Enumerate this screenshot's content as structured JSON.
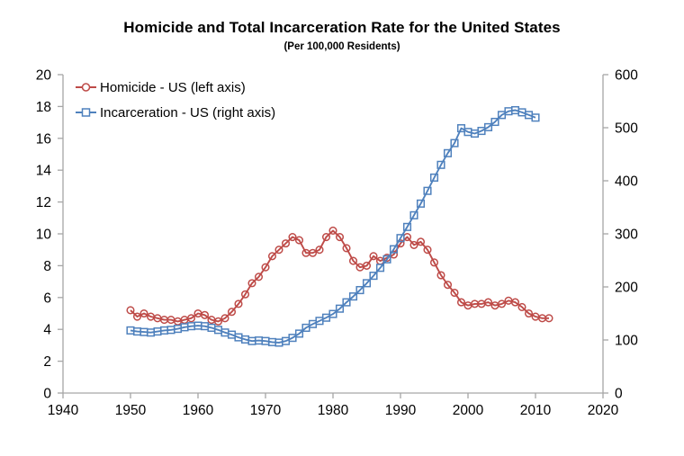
{
  "title": "Homicide and Total Incarceration Rate for the United States",
  "subtitle": "(Per 100,000 Residents)",
  "colors": {
    "homicide": "#BE4B48",
    "incarceration": "#4F81BD",
    "axis": "#A6A6A6",
    "text": "#000000",
    "background": "#FFFFFF"
  },
  "chart_data": {
    "type": "line",
    "title": "Homicide and Total Incarceration Rate for the United States",
    "subtitle": "(Per 100,000 Residents)",
    "grid": false,
    "legend_position": "top-left-inside",
    "x_axis": {
      "min": 1940,
      "max": 2020,
      "tick_step": 10,
      "ticks": [
        1940,
        1950,
        1960,
        1970,
        1980,
        1990,
        2000,
        2010,
        2020
      ]
    },
    "left_axis": {
      "min": 0,
      "max": 20,
      "tick_step": 2,
      "ticks": [
        0,
        2,
        4,
        6,
        8,
        10,
        12,
        14,
        16,
        18,
        20
      ]
    },
    "right_axis": {
      "min": 0,
      "max": 600,
      "tick_step": 100,
      "ticks": [
        0,
        100,
        200,
        300,
        400,
        500,
        600
      ]
    },
    "series": [
      {
        "name": "Homicide - US (left axis)",
        "axis": "left",
        "color": "#BE4B48",
        "marker": "circle",
        "years": [
          1950,
          1951,
          1952,
          1953,
          1954,
          1955,
          1956,
          1957,
          1958,
          1959,
          1960,
          1961,
          1962,
          1963,
          1964,
          1965,
          1966,
          1967,
          1968,
          1969,
          1970,
          1971,
          1972,
          1973,
          1974,
          1975,
          1976,
          1977,
          1978,
          1979,
          1980,
          1981,
          1982,
          1983,
          1984,
          1985,
          1986,
          1987,
          1988,
          1989,
          1990,
          1991,
          1992,
          1993,
          1994,
          1995,
          1996,
          1997,
          1998,
          1999,
          2000,
          2001,
          2002,
          2003,
          2004,
          2005,
          2006,
          2007,
          2008,
          2009,
          2010,
          2011,
          2012
        ],
        "values": [
          5.2,
          4.8,
          5.0,
          4.8,
          4.7,
          4.6,
          4.6,
          4.5,
          4.6,
          4.7,
          5.0,
          4.9,
          4.6,
          4.5,
          4.7,
          5.1,
          5.6,
          6.2,
          6.9,
          7.3,
          7.9,
          8.6,
          9.0,
          9.4,
          9.8,
          9.6,
          8.8,
          8.8,
          9.0,
          9.8,
          10.2,
          9.8,
          9.1,
          8.3,
          7.9,
          8.0,
          8.6,
          8.3,
          8.5,
          8.7,
          9.4,
          9.8,
          9.3,
          9.5,
          9.0,
          8.2,
          7.4,
          6.8,
          6.3,
          5.7,
          5.5,
          5.6,
          5.6,
          5.7,
          5.5,
          5.6,
          5.8,
          5.7,
          5.4,
          5.0,
          4.8,
          4.7,
          4.7
        ]
      },
      {
        "name": "Incarceration - US (right axis)",
        "axis": "right",
        "color": "#4F81BD",
        "marker": "square",
        "years": [
          1950,
          1951,
          1952,
          1953,
          1954,
          1955,
          1956,
          1957,
          1958,
          1959,
          1960,
          1961,
          1962,
          1963,
          1964,
          1965,
          1966,
          1967,
          1968,
          1969,
          1970,
          1971,
          1972,
          1973,
          1974,
          1975,
          1976,
          1977,
          1978,
          1979,
          1980,
          1981,
          1982,
          1983,
          1984,
          1985,
          1986,
          1987,
          1988,
          1989,
          1990,
          1991,
          1992,
          1993,
          1994,
          1995,
          1996,
          1997,
          1998,
          1999,
          2000,
          2001,
          2002,
          2003,
          2004,
          2005,
          2006,
          2007,
          2008,
          2009,
          2010
        ],
        "values": [
          118,
          116,
          115,
          114,
          116,
          118,
          119,
          121,
          124,
          126,
          127,
          126,
          123,
          119,
          114,
          110,
          105,
          101,
          98,
          99,
          98,
          96,
          95,
          98,
          104,
          112,
          123,
          130,
          136,
          142,
          149,
          159,
          171,
          182,
          194,
          207,
          221,
          236,
          252,
          271,
          292,
          313,
          335,
          357,
          381,
          406,
          430,
          452,
          471,
          499,
          492,
          489,
          494,
          501,
          511,
          524,
          531,
          533,
          529,
          524,
          519
        ]
      }
    ]
  }
}
